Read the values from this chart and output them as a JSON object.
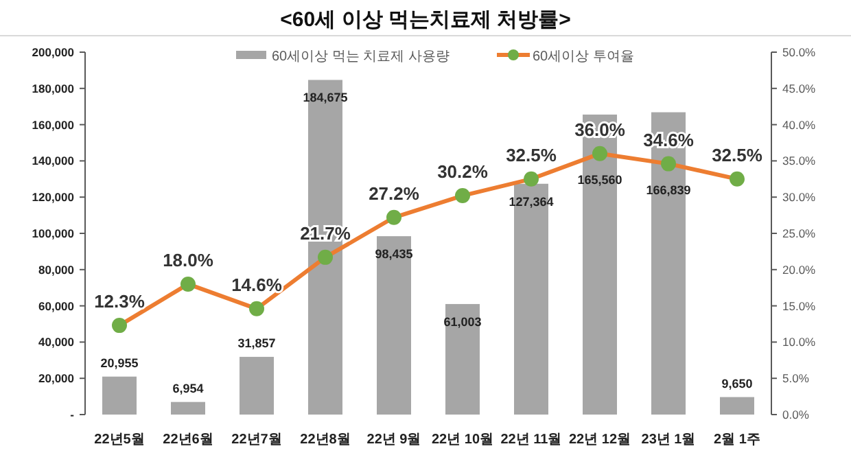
{
  "chart_data": {
    "type": "bar",
    "title": "<60세 이상 먹는치료제 처방률>",
    "categories": [
      "22년5월",
      "22년6월",
      "22년7월",
      "22년8월",
      "22년 9월",
      "22년 10월",
      "22년 11월",
      "22년 12월",
      "23년 1월",
      "2월 1주"
    ],
    "series": [
      {
        "name": "60세이상 먹는 치료제 사용량",
        "color": "#a6a6a6",
        "values": [
          20955,
          6954,
          31857,
          184675,
          98435,
          61003,
          127364,
          165560,
          166839,
          9650
        ],
        "value_labels": [
          "20,955",
          "6,954",
          "31,857",
          "184,675",
          "98,435",
          "61,003",
          "127,364",
          "165,560",
          "166,839",
          "9,650"
        ]
      },
      {
        "name": "60세이상 투여율",
        "type": "line",
        "axis": "y2",
        "color": "#ed7d31",
        "colors": [
          "#70ad47",
          "#70ad47",
          "#70ad47",
          "#70ad47",
          "#70ad47",
          "#70ad47",
          "#70ad47",
          "#70ad47",
          "#70ad47",
          "#70ad47"
        ],
        "values": [
          12.3,
          18.0,
          14.6,
          21.7,
          27.2,
          30.2,
          32.5,
          36.0,
          34.6,
          32.5
        ],
        "value_labels": [
          "12.3%",
          "18.0%",
          "14.6%",
          "21.7%",
          "27.2%",
          "30.2%",
          "32.5%",
          "36.0%",
          "34.6%",
          "32.5%"
        ]
      }
    ],
    "ylim": [
      0,
      200000
    ],
    "yticks": [
      {
        "value": 0,
        "label": "-"
      },
      {
        "value": 20000,
        "label": "20,000"
      },
      {
        "value": 40000,
        "label": "40,000"
      },
      {
        "value": 60000,
        "label": "60,000"
      },
      {
        "value": 80000,
        "label": "80,000"
      },
      {
        "value": 100000,
        "label": "100,000"
      },
      {
        "value": 120000,
        "label": "120,000"
      },
      {
        "value": 140000,
        "label": "140,000"
      },
      {
        "value": 160000,
        "label": "160,000"
      },
      {
        "value": 180000,
        "label": "180,000"
      },
      {
        "value": 200000,
        "label": "200,000"
      }
    ],
    "y2lim": [
      0,
      50
    ],
    "y2ticks": [
      {
        "value": 0,
        "label": "0.0%"
      },
      {
        "value": 5,
        "label": "5.0%"
      },
      {
        "value": 10,
        "label": "10.0%"
      },
      {
        "value": 15,
        "label": "15.0%"
      },
      {
        "value": 20,
        "label": "20.0%"
      },
      {
        "value": 25,
        "label": "25.0%"
      },
      {
        "value": 30,
        "label": "30.0%"
      },
      {
        "value": 35,
        "label": "35.0%"
      },
      {
        "value": 40,
        "label": "40.0%"
      },
      {
        "value": 45,
        "label": "45.0%"
      },
      {
        "value": 50,
        "label": "50.0%"
      }
    ],
    "legend": "top",
    "marker": "circle",
    "grid": false
  }
}
